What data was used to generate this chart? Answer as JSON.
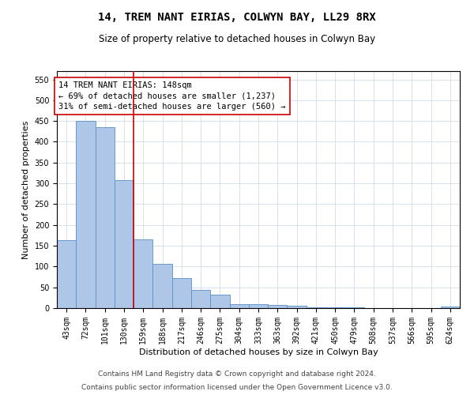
{
  "title": "14, TREM NANT EIRIAS, COLWYN BAY, LL29 8RX",
  "subtitle": "Size of property relative to detached houses in Colwyn Bay",
  "xlabel": "Distribution of detached houses by size in Colwyn Bay",
  "ylabel": "Number of detached properties",
  "categories": [
    "43sqm",
    "72sqm",
    "101sqm",
    "130sqm",
    "159sqm",
    "188sqm",
    "217sqm",
    "246sqm",
    "275sqm",
    "304sqm",
    "333sqm",
    "363sqm",
    "392sqm",
    "421sqm",
    "450sqm",
    "479sqm",
    "508sqm",
    "537sqm",
    "566sqm",
    "595sqm",
    "624sqm"
  ],
  "values": [
    163,
    450,
    435,
    307,
    165,
    107,
    73,
    44,
    33,
    10,
    10,
    8,
    5,
    2,
    1,
    1,
    0,
    0,
    0,
    0,
    4
  ],
  "bar_color": "#aec6e8",
  "bar_edge_color": "#5a8fc2",
  "vline_x": 3.5,
  "vline_color": "#cc0000",
  "annotation_text": "14 TREM NANT EIRIAS: 148sqm\n← 69% of detached houses are smaller (1,237)\n31% of semi-detached houses are larger (560) →",
  "annotation_box_color": "#ffffff",
  "annotation_box_edge": "#cc0000",
  "ylim": [
    0,
    570
  ],
  "yticks": [
    0,
    50,
    100,
    150,
    200,
    250,
    300,
    350,
    400,
    450,
    500,
    550
  ],
  "footnote1": "Contains HM Land Registry data © Crown copyright and database right 2024.",
  "footnote2": "Contains public sector information licensed under the Open Government Licence v3.0.",
  "title_fontsize": 10,
  "subtitle_fontsize": 8.5,
  "xlabel_fontsize": 8,
  "ylabel_fontsize": 8,
  "tick_fontsize": 7,
  "annotation_fontsize": 7.5,
  "footnote_fontsize": 6.5,
  "bg_color": "#ffffff",
  "grid_color": "#c8d4e8"
}
